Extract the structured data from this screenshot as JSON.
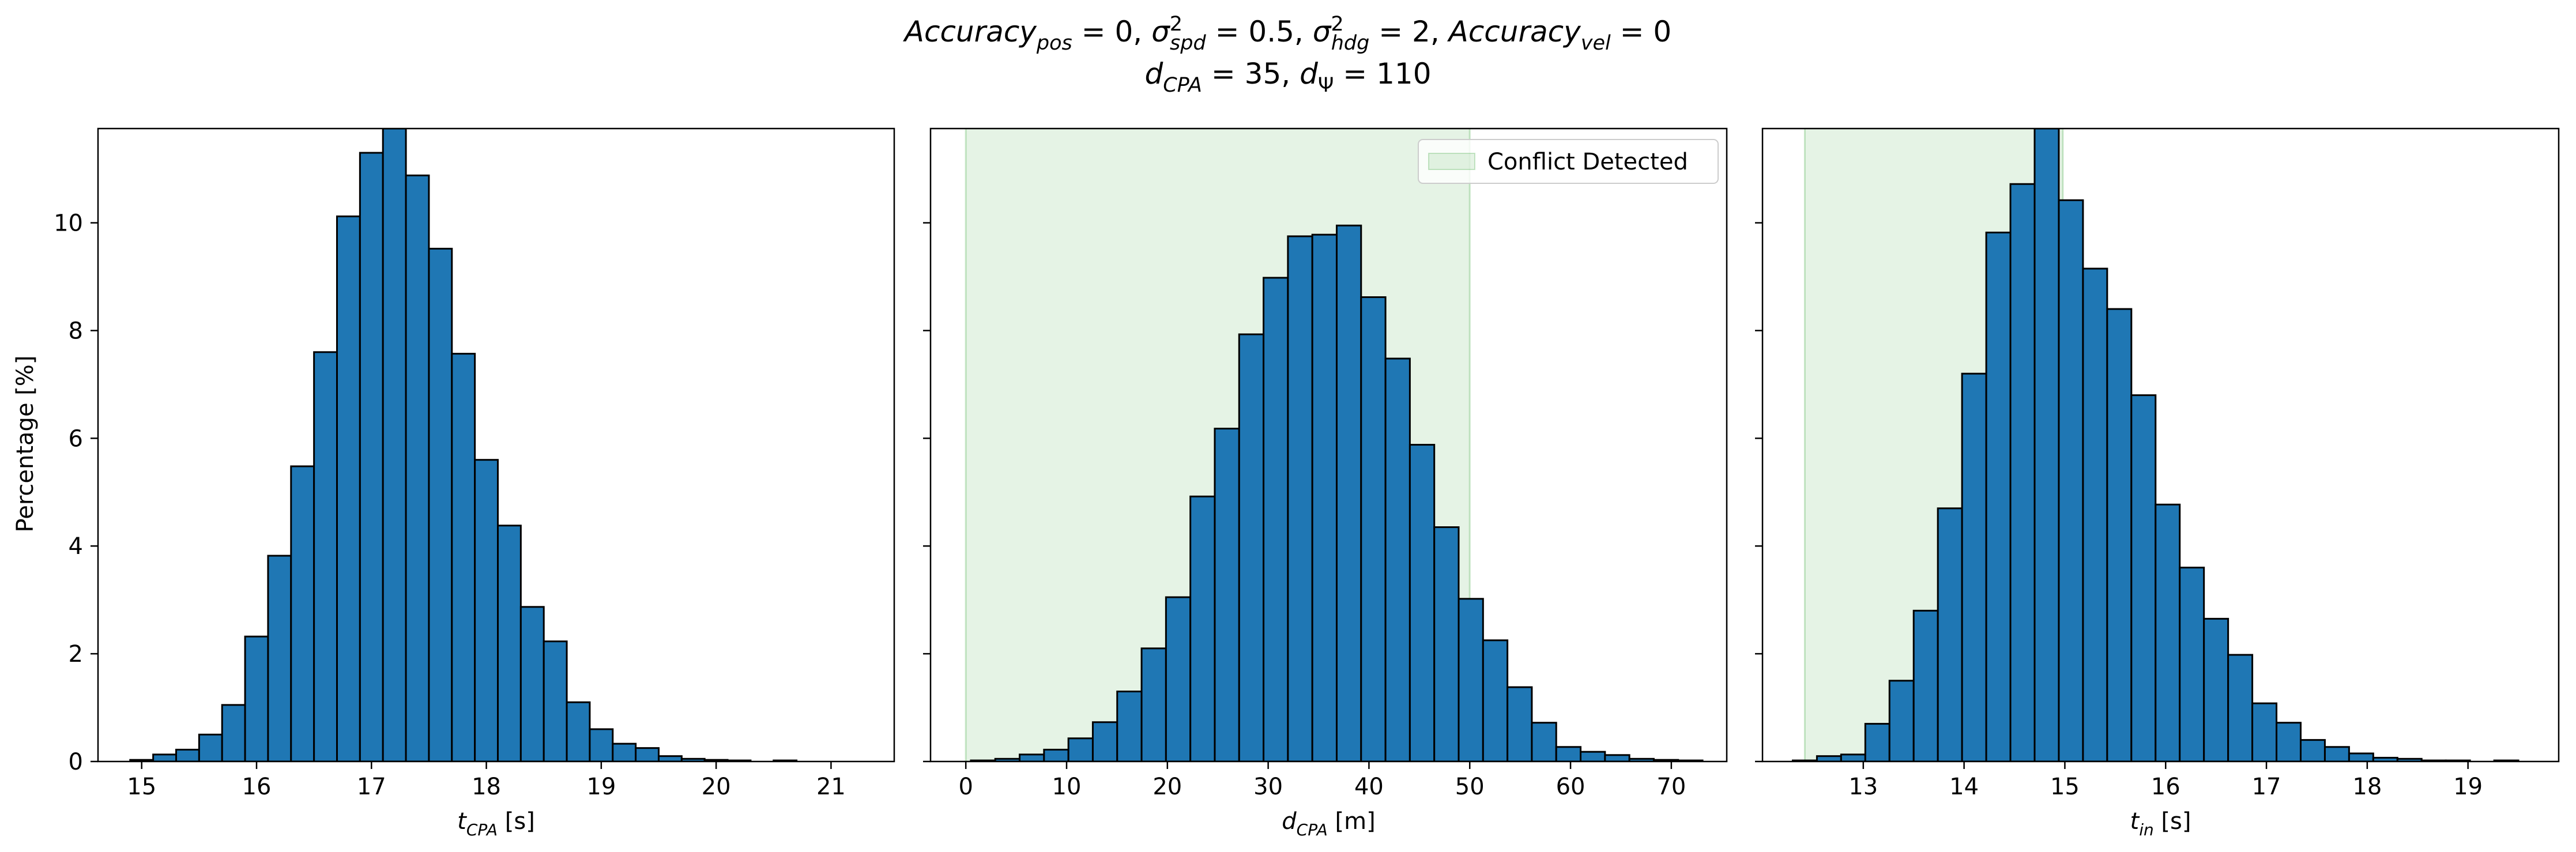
{
  "figure": {
    "title_line1": {
      "parts": [
        {
          "t": "Accuracy",
          "i": true
        },
        {
          "t": "pos",
          "i": true,
          "sub": true
        },
        {
          "t": " = 0, "
        },
        {
          "t": "σ",
          "i": true
        },
        {
          "t": "2",
          "sup": true,
          "dx": 0
        },
        {
          "t": "spd",
          "i": true,
          "sub": true,
          "dx": -22
        },
        {
          "t": " = 0.5, "
        },
        {
          "t": "σ",
          "i": true
        },
        {
          "t": "2",
          "sup": true,
          "dx": 0
        },
        {
          "t": "hdg",
          "i": true,
          "sub": true,
          "dx": -22
        },
        {
          "t": " = 2, "
        },
        {
          "t": "Accuracy",
          "i": true
        },
        {
          "t": "vel",
          "i": true,
          "sub": true
        },
        {
          "t": " = 0"
        }
      ]
    },
    "title_line2": {
      "parts": [
        {
          "t": "d",
          "i": true
        },
        {
          "t": "CPA",
          "i": true,
          "sub": true
        },
        {
          "t": " = 35, "
        },
        {
          "t": "d",
          "i": true
        },
        {
          "t": "Ψ",
          "sub": true
        },
        {
          "t": " = 110"
        }
      ]
    }
  },
  "colors": {
    "bar_fill": "#1f77b4",
    "bar_edge": "#000000",
    "shade": "#2ca02c",
    "shade_opacity": 0.12
  },
  "ylabel": "Percentage [%]",
  "y_ticks": [
    0,
    2,
    4,
    6,
    8,
    10
  ],
  "chart_data": [
    {
      "type": "bar",
      "xlabel": {
        "parts": [
          {
            "t": "t",
            "i": true
          },
          {
            "t": "CPA",
            "i": true,
            "sub": true
          },
          {
            "t": " [s]"
          }
        ]
      },
      "xlim": [
        14.62,
        21.55
      ],
      "ylim": [
        0,
        11.75
      ],
      "x_ticks": [
        15,
        16,
        17,
        18,
        19,
        20,
        21
      ],
      "bin_width": 0.2,
      "bin_start": 14.9,
      "values": [
        0.03,
        0.13,
        0.22,
        0.5,
        1.05,
        2.32,
        3.82,
        5.48,
        7.6,
        10.12,
        11.3,
        11.75,
        10.88,
        9.52,
        7.57,
        5.6,
        4.38,
        2.87,
        2.23,
        1.1,
        0.6,
        0.33,
        0.25,
        0.1,
        0.05,
        0.03,
        0.02,
        0.0,
        0.02
      ],
      "shaded_region": null,
      "legend": null
    },
    {
      "type": "bar",
      "xlabel": {
        "parts": [
          {
            "t": "d",
            "i": true
          },
          {
            "t": "CPA",
            "i": true,
            "sub": true
          },
          {
            "t": " [m]"
          }
        ]
      },
      "xlim": [
        -3.5,
        75.5
      ],
      "ylim": [
        0,
        11.75
      ],
      "x_ticks": [
        0,
        10,
        20,
        30,
        40,
        50,
        60,
        70
      ],
      "bin_width": 2.42,
      "bin_start": 0.5,
      "values": [
        0.02,
        0.05,
        0.13,
        0.22,
        0.43,
        0.73,
        1.3,
        2.1,
        3.05,
        4.92,
        6.18,
        7.93,
        8.98,
        9.75,
        9.78,
        9.95,
        8.62,
        7.48,
        5.88,
        4.35,
        3.02,
        2.25,
        1.38,
        0.72,
        0.27,
        0.18,
        0.12,
        0.05,
        0.03,
        0.02
      ],
      "shaded_region": [
        0,
        50
      ],
      "legend": "Conflict Detected"
    },
    {
      "type": "bar",
      "xlabel": {
        "parts": [
          {
            "t": "t",
            "i": true
          },
          {
            "t": "in",
            "i": true,
            "sub": true
          },
          {
            "t": " [s]"
          }
        ]
      },
      "xlim": [
        12.0,
        19.9
      ],
      "ylim": [
        0,
        11.75
      ],
      "x_ticks": [
        13,
        14,
        15,
        16,
        17,
        18,
        19
      ],
      "bin_width": 0.24,
      "bin_start": 12.3,
      "values": [
        0.02,
        0.1,
        0.13,
        0.7,
        1.5,
        2.8,
        4.7,
        7.2,
        9.82,
        10.72,
        11.75,
        10.42,
        9.15,
        8.4,
        6.8,
        4.77,
        3.6,
        2.65,
        1.98,
        1.08,
        0.72,
        0.4,
        0.27,
        0.15,
        0.07,
        0.05,
        0.02,
        0.02,
        0.0,
        0.02
      ],
      "shaded_region": [
        12.42,
        14.98
      ],
      "legend": null
    }
  ]
}
